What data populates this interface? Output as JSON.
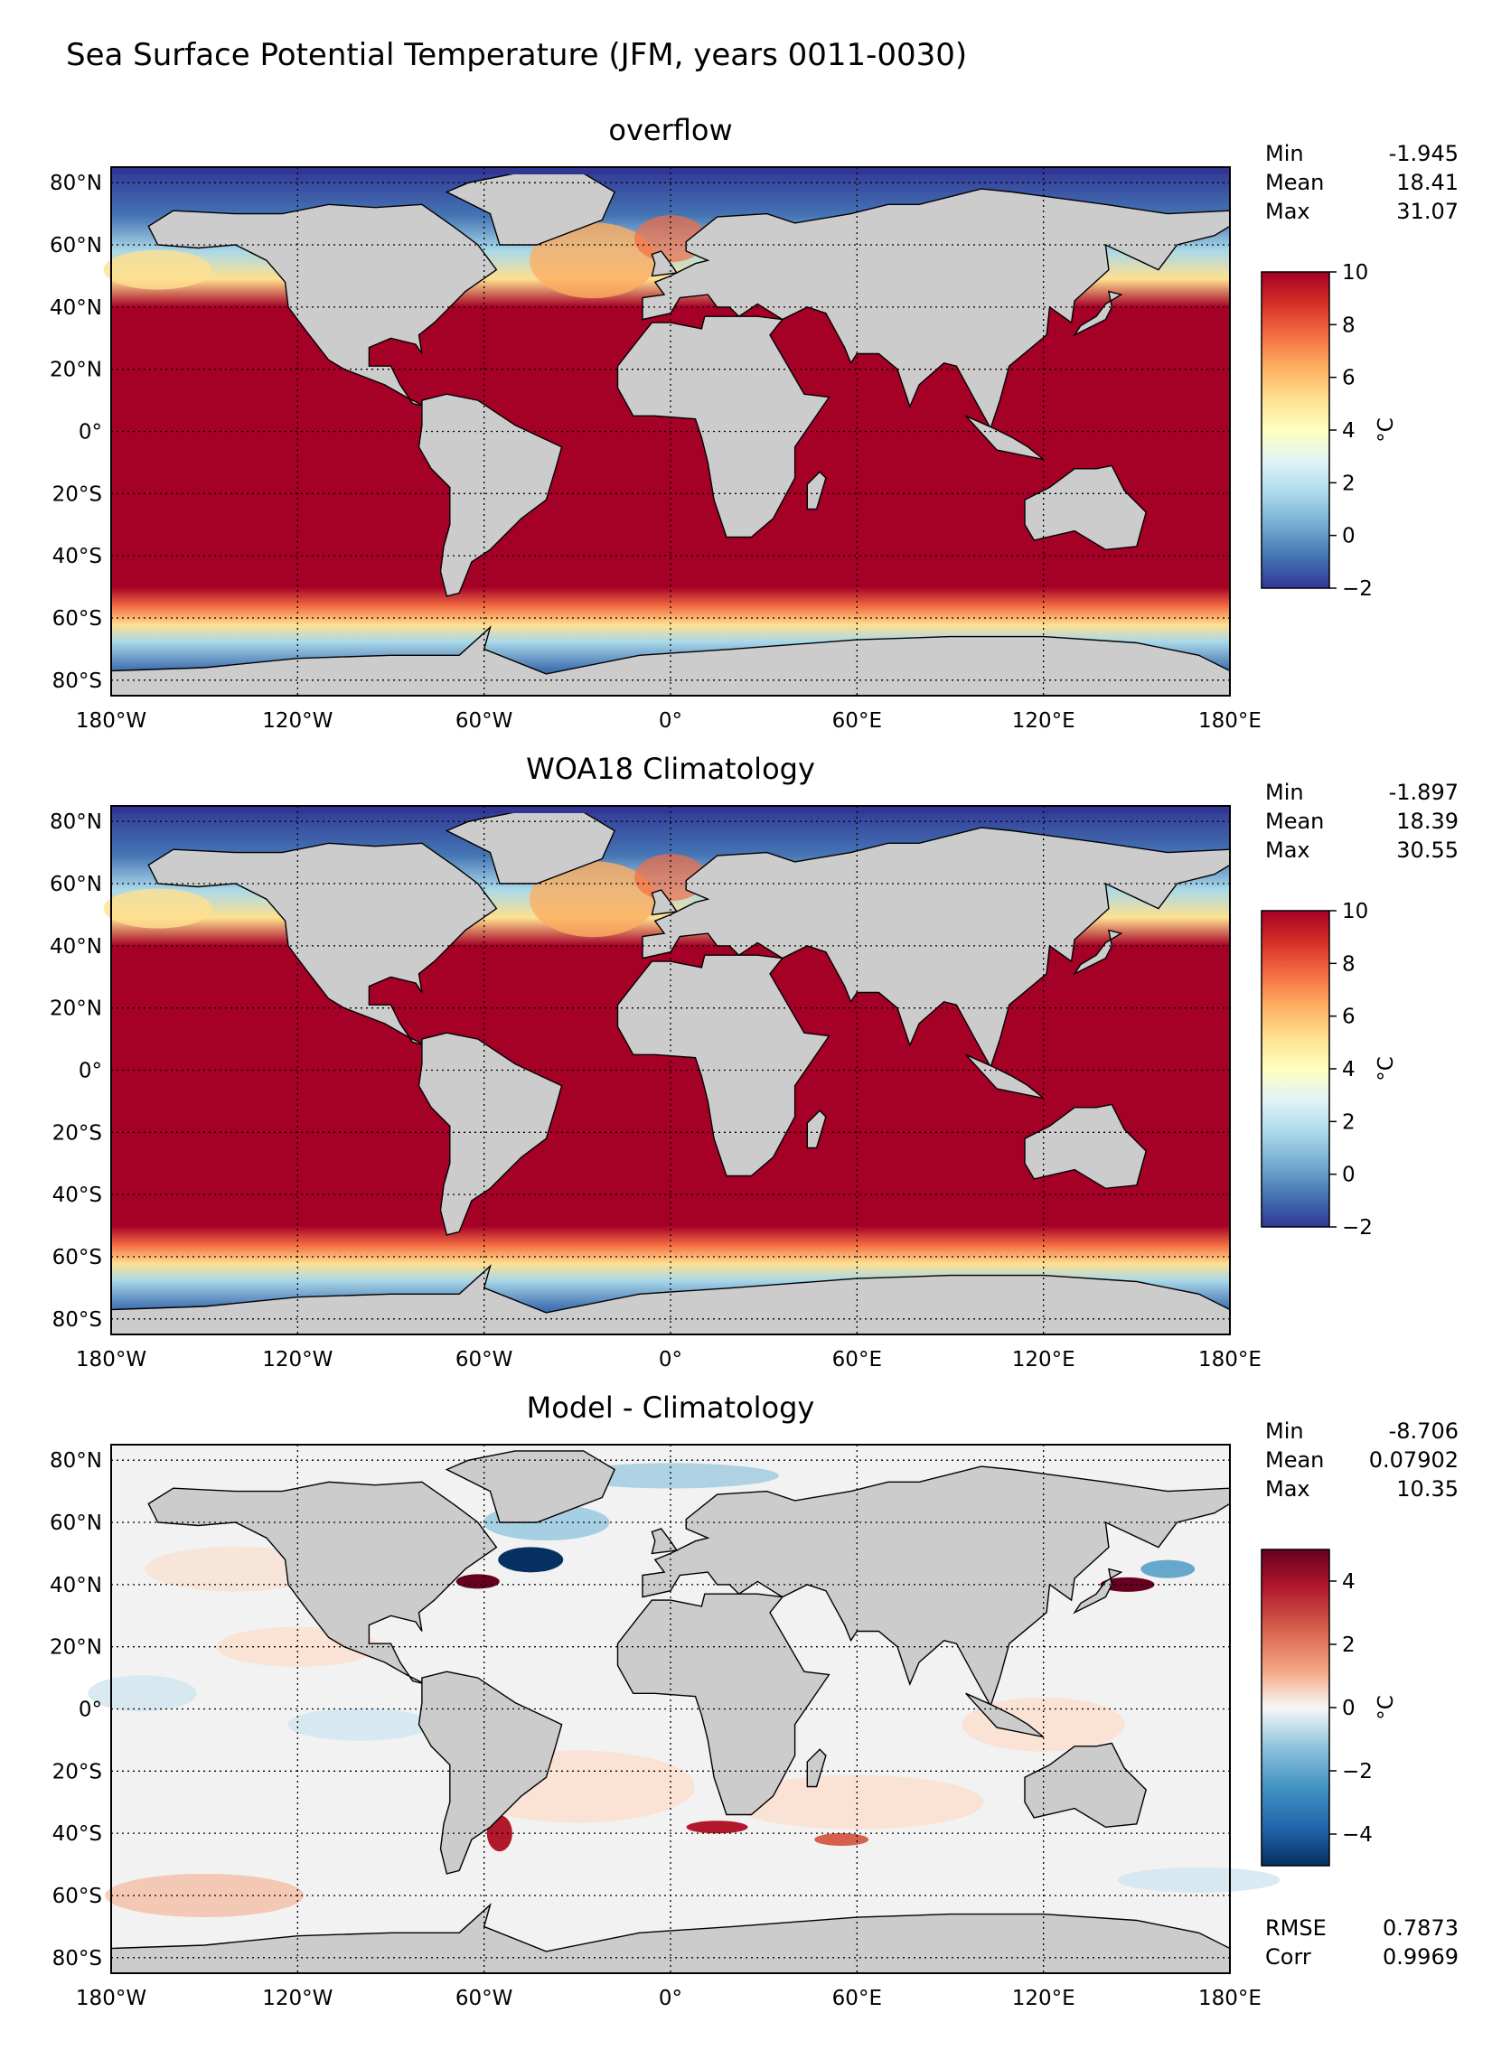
{
  "figure_title": "Sea Surface Potential Temperature (JFM, years 0011-0030)",
  "lon_ticks": [
    "180°W",
    "120°W",
    "60°W",
    "0°",
    "60°E",
    "120°E",
    "180°E"
  ],
  "lat_ticks": [
    "80°N",
    "60°N",
    "40°N",
    "20°N",
    "0°",
    "20°S",
    "40°S",
    "60°S",
    "80°S"
  ],
  "lat_tick_values": [
    80,
    60,
    40,
    20,
    0,
    -20,
    -40,
    -60,
    -80
  ],
  "lon_tick_values": [
    -180,
    -120,
    -60,
    0,
    60,
    120,
    180
  ],
  "extent": {
    "lon": [
      -180,
      180
    ],
    "lat": [
      -85,
      85
    ]
  },
  "panels": [
    {
      "title": "overflow",
      "stats": [
        {
          "label": "Min",
          "value": "-1.945"
        },
        {
          "label": "Mean",
          "value": "18.41"
        },
        {
          "label": "Max",
          "value": "31.07"
        }
      ],
      "colorbar": {
        "ticks": [
          "10",
          "8",
          "6",
          "4",
          "2",
          "0",
          "−2"
        ],
        "tick_values": [
          10,
          8,
          6,
          4,
          2,
          0,
          -2
        ],
        "range": [
          -2,
          10
        ],
        "label": "°C",
        "colormap": "RdYlBu_r"
      }
    },
    {
      "title": "WOA18 Climatology",
      "stats": [
        {
          "label": "Min",
          "value": "-1.897"
        },
        {
          "label": "Mean",
          "value": "18.39"
        },
        {
          "label": "Max",
          "value": "30.55"
        }
      ],
      "colorbar": {
        "ticks": [
          "10",
          "8",
          "6",
          "4",
          "2",
          "0",
          "−2"
        ],
        "tick_values": [
          10,
          8,
          6,
          4,
          2,
          0,
          -2
        ],
        "range": [
          -2,
          10
        ],
        "label": "°C",
        "colormap": "RdYlBu_r"
      }
    },
    {
      "title": "Model - Climatology",
      "stats": [
        {
          "label": "Min",
          "value": "-8.706"
        },
        {
          "label": "Mean",
          "value": "0.07902"
        },
        {
          "label": "Max",
          "value": "10.35"
        }
      ],
      "colorbar": {
        "ticks": [
          "4",
          "2",
          "0",
          "−2",
          "−4"
        ],
        "tick_values": [
          4,
          2,
          0,
          -2,
          -4
        ],
        "range": [
          -5,
          5
        ],
        "label": "°C",
        "colormap": "RdBu_r"
      },
      "extra_stats": [
        {
          "label": "RMSE",
          "value": "0.7873"
        },
        {
          "label": "Corr",
          "value": "0.9969"
        }
      ]
    }
  ],
  "colors": {
    "land": "#cccccc",
    "warm_sea": "#a50026",
    "cold_sea": "#313695",
    "diff_neutral": "#f2f2f2",
    "grid": "#000000"
  }
}
